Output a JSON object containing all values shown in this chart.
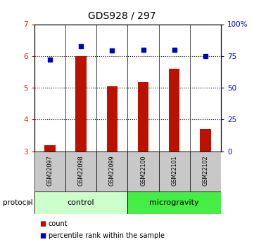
{
  "title": "GDS928 / 297",
  "samples": [
    "GSM22097",
    "GSM22098",
    "GSM22099",
    "GSM22100",
    "GSM22101",
    "GSM22102"
  ],
  "bar_values": [
    3.2,
    6.0,
    5.05,
    5.18,
    5.6,
    3.7
  ],
  "dot_values": [
    5.88,
    6.3,
    6.17,
    6.2,
    6.2,
    6.0
  ],
  "ylim_left": [
    3,
    7
  ],
  "ylim_right": [
    0,
    100
  ],
  "yticks_left": [
    3,
    4,
    5,
    6,
    7
  ],
  "yticks_right": [
    0,
    25,
    50,
    75,
    100
  ],
  "ytick_labels_right": [
    "0",
    "25",
    "50",
    "75",
    "100%"
  ],
  "bar_color": "#bb1100",
  "dot_color": "#0000bb",
  "groups": [
    {
      "label": "control",
      "start": 0,
      "end": 3,
      "color": "#ccffcc"
    },
    {
      "label": "microgravity",
      "start": 3,
      "end": 6,
      "color": "#44ee44"
    }
  ],
  "protocol_label": "protocol",
  "legend_items": [
    {
      "label": "count",
      "color": "#bb1100",
      "marker_color": "#bb1100"
    },
    {
      "label": "percentile rank within the sample",
      "color": "#0000bb",
      "marker_color": "#0000bb"
    }
  ],
  "sample_box_color": "#c8c8c8",
  "left_axis_color": "#cc2200",
  "right_axis_color": "#0000cc",
  "bar_width": 0.35
}
